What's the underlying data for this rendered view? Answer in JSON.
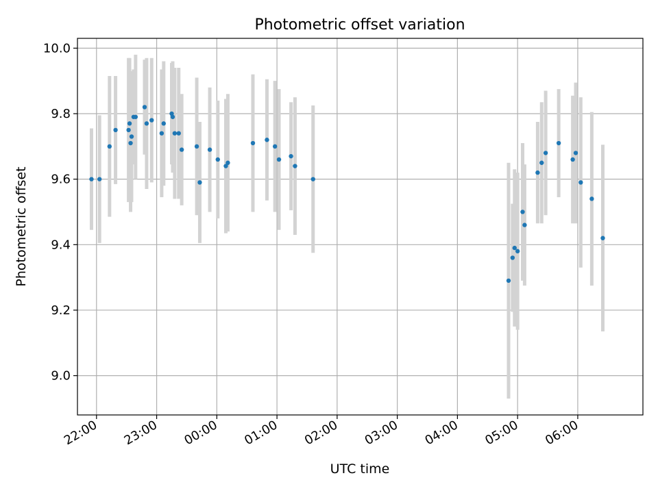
{
  "chart_data": {
    "type": "scatter",
    "title": "Photometric offset variation",
    "xlabel": "UTC time",
    "ylabel": "Photometric offset",
    "x_ticks": [
      "22:00",
      "23:00",
      "00:00",
      "01:00",
      "02:00",
      "03:00",
      "04:00",
      "05:00",
      "06:00"
    ],
    "y_ticks": [
      "9.0",
      "9.2",
      "9.4",
      "9.6",
      "9.8",
      "10.0"
    ],
    "xlim": [
      "21:41",
      "07:05"
    ],
    "ylim": [
      8.88,
      10.03
    ],
    "grid": true,
    "colors": {
      "point": "#1f77b4",
      "errorbar": "#d3d3d3",
      "grid": "#b0b0b0"
    },
    "series": [
      {
        "x": [
          "21:55",
          "22:03",
          "22:13",
          "22:19",
          "22:32",
          "22:33",
          "22:34",
          "22:35",
          "22:37",
          "22:39",
          "22:48",
          "22:50",
          "22:55",
          "23:05",
          "23:07",
          "23:15",
          "23:16",
          "23:18",
          "23:22",
          "23:25",
          "23:40",
          "23:43",
          "23:53",
          "00:01",
          "00:09",
          "00:11",
          "00:36",
          "00:50",
          "00:58",
          "01:02",
          "01:14",
          "01:18",
          "01:36",
          "04:51",
          "04:55",
          "04:57",
          "05:00",
          "05:05",
          "05:07",
          "05:20",
          "05:24",
          "05:28",
          "05:41",
          "05:55",
          "05:58",
          "06:03",
          "06:14",
          "06:25"
        ],
        "y": [
          9.6,
          9.6,
          9.7,
          9.75,
          9.75,
          9.77,
          9.71,
          9.73,
          9.79,
          9.79,
          9.82,
          9.77,
          9.78,
          9.74,
          9.77,
          9.8,
          9.79,
          9.74,
          9.74,
          9.69,
          9.7,
          9.59,
          9.69,
          9.66,
          9.64,
          9.65,
          9.71,
          9.72,
          9.7,
          9.66,
          9.67,
          9.64,
          9.6,
          9.29,
          9.36,
          9.39,
          9.38,
          9.5,
          9.46,
          9.62,
          9.65,
          9.68,
          9.71,
          9.66,
          9.68,
          9.59,
          9.54,
          9.42
        ],
        "err": [
          0.155,
          0.195,
          0.215,
          0.165,
          0.22,
          0.2,
          0.21,
          0.2,
          0.145,
          0.19,
          0.145,
          0.2,
          0.19,
          0.195,
          0.19,
          0.155,
          0.17,
          0.2,
          0.2,
          0.17,
          0.21,
          0.185,
          0.19,
          0.18,
          0.205,
          0.21,
          0.21,
          0.185,
          0.2,
          0.215,
          0.165,
          0.21,
          0.225,
          0.36,
          0.165,
          0.24,
          0.24,
          0.21,
          0.185,
          0.155,
          0.185,
          0.19,
          0.165,
          0.195,
          0.215,
          0.26,
          0.265,
          0.285
        ]
      }
    ]
  }
}
